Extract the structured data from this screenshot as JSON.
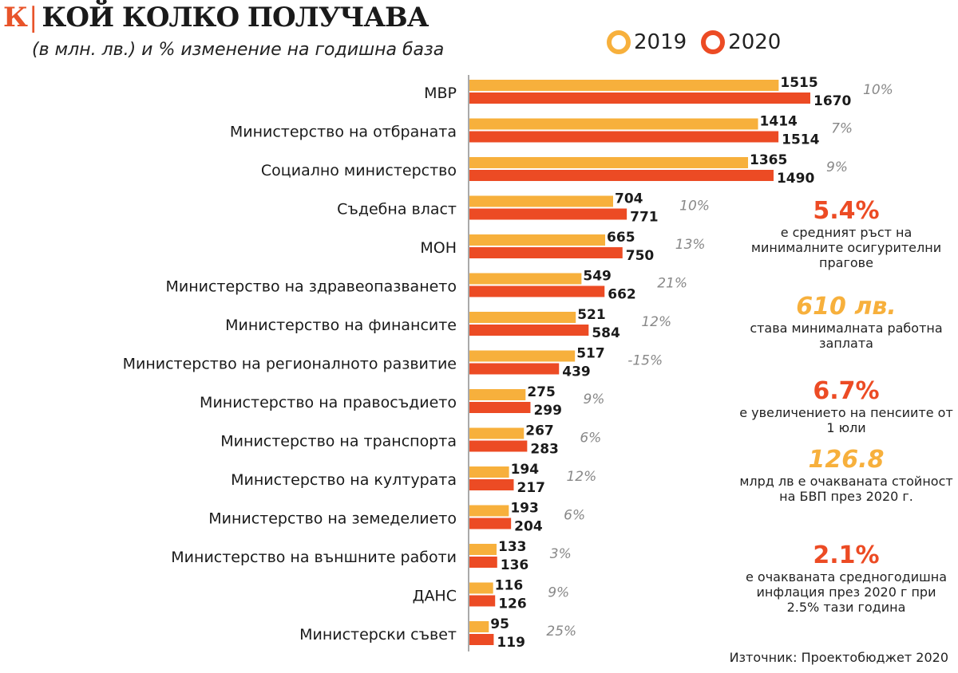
{
  "header": {
    "logo": "К",
    "title": "КОЙ КОЛКО ПОЛУЧАВА",
    "subtitle": "(в млн. лв.) и % изменение на годишна база"
  },
  "colors": {
    "y2019": "#f7b03c",
    "y2020": "#ec4b24"
  },
  "chart_data": {
    "type": "bar",
    "orientation": "horizontal",
    "title": "КОЙ КОЛКО ПОЛУЧАВА",
    "subtitle": "(в млн. лв.) и % изменение на годишна база",
    "legend": [
      "2019",
      "2020"
    ],
    "legend_position": "top-right",
    "categories": [
      "МВР",
      "Министерство на отбраната",
      "Социално министерство",
      "Съдебна власт",
      "МОН",
      "Министерство на здравеопазването",
      "Министерство на финансите",
      "Министерство на регионалното развитие",
      "Министерство на правосъдието",
      "Министерство на транспорта",
      "Министерство на културата",
      "Министерство на земеделието",
      "Министерство на външните работи",
      "ДАНС",
      "Министерски съвет"
    ],
    "series": [
      {
        "name": "2019",
        "values": [
          1515,
          1414,
          1365,
          704,
          665,
          549,
          521,
          517,
          275,
          267,
          194,
          193,
          133,
          116,
          95
        ]
      },
      {
        "name": "2020",
        "values": [
          1670,
          1514,
          1490,
          771,
          750,
          662,
          584,
          439,
          299,
          283,
          217,
          204,
          136,
          126,
          119
        ]
      }
    ],
    "change_labels": [
      "10%",
      "7%",
      "9%",
      "10%",
      "13%",
      "21%",
      "12%",
      "-15%",
      "9%",
      "6%",
      "12%",
      "6%",
      "3%",
      "9%",
      "25%"
    ],
    "xlim": [
      0,
      1700
    ]
  },
  "notes": [
    {
      "value": "5.4%",
      "color": "#ec4b24",
      "text": "е средният ръст на минималните осигурителни прагове"
    },
    {
      "value": "610 лв.",
      "color": "#f7b03c",
      "text": "става минималната работна заплата"
    },
    {
      "value": "6.7%",
      "color": "#ec4b24",
      "text": "е увеличението на пенсиите от 1 юли"
    },
    {
      "value": "126.8",
      "color": "#f7b03c",
      "text": "млрд лв е очакваната стойност на БВП през 2020 г."
    },
    {
      "value": "2.1%",
      "color": "#ec4b24",
      "text": "е очакваната средногодишна инфлация през 2020 г при 2.5% тази година"
    }
  ],
  "source": "Източник: Проектобюджет 2020"
}
